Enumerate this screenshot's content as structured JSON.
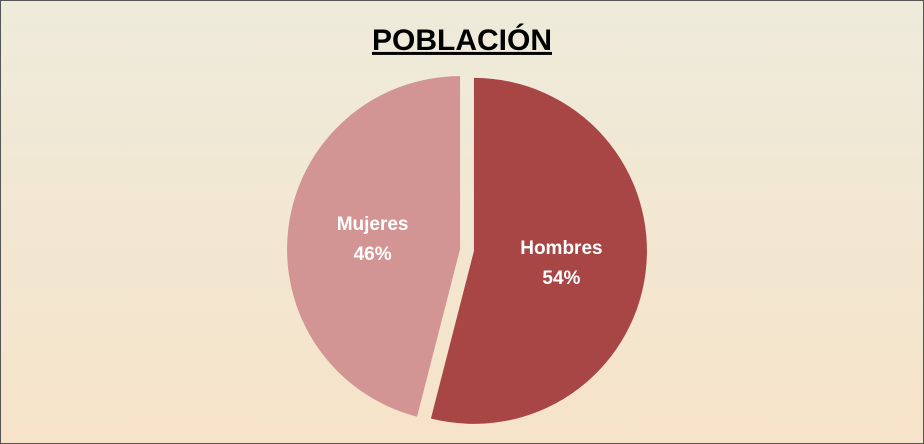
{
  "chart_data": {
    "type": "pie",
    "title": "POBLACIÓN",
    "categories": [
      "Hombres",
      "Mujeres"
    ],
    "values": [
      54,
      46
    ],
    "value_labels": [
      "54%",
      "46%"
    ],
    "colors": [
      "#a84646",
      "#d39494"
    ]
  }
}
